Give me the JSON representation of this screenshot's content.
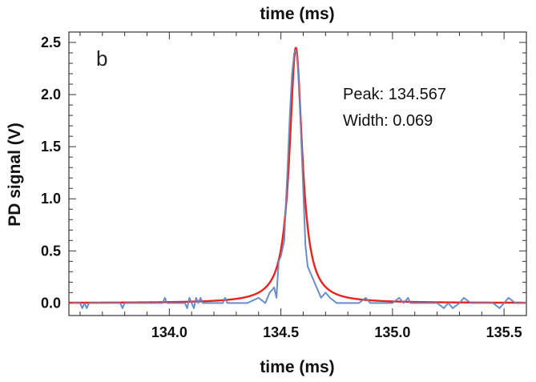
{
  "chart_data": {
    "type": "line",
    "panel_label": "b",
    "xlabel": "time (ms)",
    "top_label": "time (ms)",
    "ylabel": "PD signal (V)",
    "xlim": [
      133.55,
      135.6
    ],
    "ylim": [
      -0.12,
      2.6
    ],
    "x_ticks": [
      134.0,
      134.5,
      135.0,
      135.5
    ],
    "x_tick_labels": [
      "134.0",
      "134.5",
      "135.0",
      "135.5"
    ],
    "y_ticks": [
      0.0,
      0.5,
      1.0,
      1.5,
      2.0,
      2.5
    ],
    "y_tick_labels": [
      "0.0",
      "0.5",
      "1.0",
      "1.5",
      "2.0",
      "2.5"
    ],
    "annotations": [
      "Peak: 134.567",
      "Width: 0.069"
    ],
    "series": [
      {
        "color": "#6b8fc7",
        "x": [
          133.56,
          133.6,
          133.61,
          133.62,
          133.63,
          133.64,
          133.65,
          133.7,
          133.75,
          133.78,
          133.79,
          133.8,
          133.85,
          133.9,
          133.95,
          133.97,
          133.98,
          133.99,
          134.05,
          134.07,
          134.08,
          134.09,
          134.1,
          134.11,
          134.12,
          134.13,
          134.14,
          134.15,
          134.2,
          134.24,
          134.25,
          134.26,
          134.3,
          134.35,
          134.4,
          134.43,
          134.45,
          134.47,
          134.48,
          134.49,
          134.5,
          134.51,
          134.515,
          134.52,
          134.53,
          134.54,
          134.55,
          134.56,
          134.567,
          134.575,
          134.585,
          134.6,
          134.61,
          134.62,
          134.64,
          134.66,
          134.68,
          134.7,
          134.72,
          134.75,
          134.8,
          134.85,
          134.88,
          134.9,
          134.91,
          134.92,
          134.95,
          135.0,
          135.03,
          135.05,
          135.07,
          135.08,
          135.1,
          135.2,
          135.23,
          135.25,
          135.27,
          135.3,
          135.32,
          135.35,
          135.4,
          135.45,
          135.48,
          135.5,
          135.52,
          135.55,
          135.6
        ],
        "y": [
          0.0,
          0.0,
          -0.05,
          0.0,
          -0.05,
          0.0,
          0.0,
          0.0,
          0.0,
          0.0,
          -0.05,
          0.0,
          0.0,
          0.0,
          0.0,
          0.0,
          0.05,
          0.0,
          0.0,
          0.0,
          -0.05,
          0.05,
          0.0,
          -0.05,
          0.05,
          0.0,
          0.05,
          0.0,
          0.0,
          0.0,
          0.05,
          0.0,
          0.0,
          0.0,
          0.05,
          0.0,
          0.1,
          0.15,
          0.05,
          0.4,
          0.45,
          0.55,
          0.6,
          0.85,
          1.3,
          1.8,
          2.2,
          2.4,
          2.43,
          2.35,
          1.9,
          1.1,
          0.55,
          0.35,
          0.25,
          0.15,
          0.05,
          0.1,
          0.05,
          0.0,
          0.0,
          0.0,
          0.05,
          0.0,
          0.0,
          0.0,
          0.0,
          0.0,
          0.05,
          0.0,
          0.05,
          0.0,
          0.0,
          0.0,
          -0.05,
          0.0,
          -0.05,
          0.0,
          0.05,
          0.0,
          0.0,
          0.0,
          -0.05,
          0.0,
          0.05,
          0.0,
          0.0
        ]
      },
      {
        "color": "#e8231c",
        "fit": "lorentzian",
        "peak_x": 134.567,
        "width": 0.069,
        "amplitude": 2.45
      }
    ],
    "grid": false,
    "legend": "none"
  }
}
